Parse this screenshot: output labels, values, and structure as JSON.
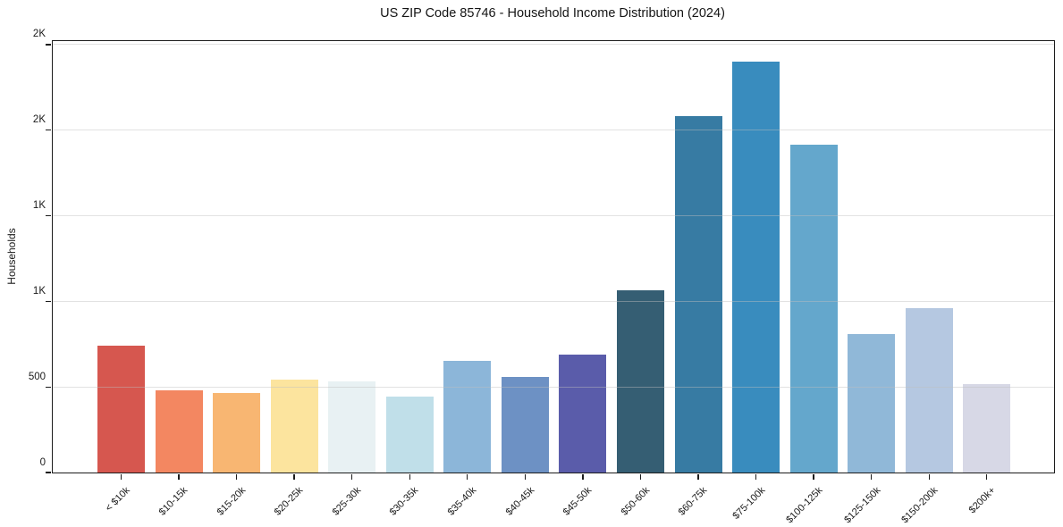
{
  "figure": {
    "title": "US ZIP Code 85746 - Household Income Distribution (2024)"
  },
  "chart_data": {
    "type": "bar",
    "title": "US ZIP Code 85746 - Household Income Distribution (2024)",
    "xlabel": "",
    "ylabel": "Households",
    "categories": [
      "< $10k",
      "$10-15k",
      "$15-20k",
      "$20-25k",
      "$25-30k",
      "$30-35k",
      "$35-40k",
      "$40-45k",
      "$45-50k",
      "$50-60k",
      "$60-75k",
      "$75-100k",
      "$100-125k",
      "$125-150k",
      "$150-200k",
      "$200k+"
    ],
    "values": [
      740,
      480,
      465,
      545,
      535,
      445,
      650,
      560,
      690,
      1065,
      2080,
      2400,
      1915,
      810,
      960,
      515
    ],
    "bar_colors": [
      "#d6574f",
      "#f38761",
      "#f8b672",
      "#fce49e",
      "#e8f1f3",
      "#c0dfe9",
      "#8cb6d9",
      "#6d91c4",
      "#5a5caa",
      "#355e73",
      "#377ba3",
      "#398cbe",
      "#64a7cc",
      "#90b8d8",
      "#b5c8e1",
      "#d7d8e6"
    ],
    "ylim": [
      0,
      2520
    ],
    "yticks": [
      {
        "value": 0,
        "label": "0"
      },
      {
        "value": 500,
        "label": "500"
      },
      {
        "value": 1000,
        "label": "1K"
      },
      {
        "value": 1500,
        "label": "1K"
      },
      {
        "value": 2000,
        "label": "2K"
      },
      {
        "value": 2500,
        "label": "2K"
      }
    ],
    "grid": "horizontal gridlines at y ticks, drawn over bars",
    "legend": false,
    "x_tick_rotation_deg": 45
  }
}
